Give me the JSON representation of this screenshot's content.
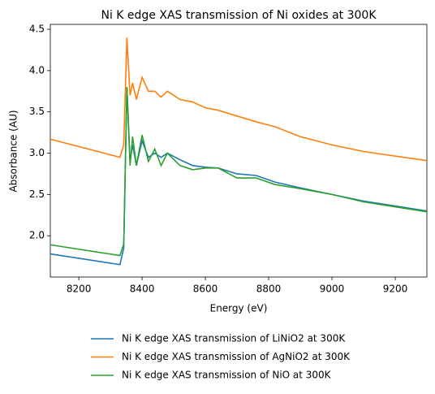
{
  "chart_data": {
    "type": "line",
    "title": "Ni K edge XAS transmission of Ni oxides at 300K",
    "xlabel": "Energy (eV)",
    "ylabel": "Absorbance (AU)",
    "xlim": [
      8110,
      9300
    ],
    "ylim": [
      1.5,
      4.56
    ],
    "xticks": [
      8200,
      8400,
      8600,
      8800,
      9000,
      9200
    ],
    "yticks": [
      {
        "value": 2.0,
        "label": "2.0"
      },
      {
        "value": 2.5,
        "label": "2.5"
      },
      {
        "value": 3.0,
        "label": "3.0"
      },
      {
        "value": 3.5,
        "label": "3.5"
      },
      {
        "value": 4.0,
        "label": "4.0"
      },
      {
        "value": 4.5,
        "label": "4.5"
      }
    ],
    "x": [
      8110,
      8330,
      8342,
      8352,
      8362,
      8370,
      8382,
      8400,
      8420,
      8440,
      8460,
      8480,
      8520,
      8560,
      8600,
      8640,
      8700,
      8760,
      8820,
      8900,
      9000,
      9100,
      9300
    ],
    "legend": "lower center",
    "series": [
      {
        "name": "Ni K edge XAS transmission of LiNiO2 at 300K",
        "color": "#1f77b4",
        "values": [
          1.78,
          1.65,
          1.85,
          3.8,
          2.9,
          3.1,
          2.85,
          3.15,
          2.95,
          3.0,
          2.95,
          3.0,
          2.92,
          2.85,
          2.83,
          2.82,
          2.75,
          2.73,
          2.65,
          2.58,
          2.5,
          2.42,
          2.3
        ]
      },
      {
        "name": "Ni K edge XAS transmission of AgNiO2 at 300K",
        "color": "#ff7f0e",
        "values": [
          3.17,
          2.95,
          3.1,
          4.4,
          3.7,
          3.85,
          3.65,
          3.92,
          3.75,
          3.75,
          3.68,
          3.75,
          3.65,
          3.62,
          3.55,
          3.52,
          3.45,
          3.38,
          3.32,
          3.2,
          3.1,
          3.02,
          2.91
        ]
      },
      {
        "name": "Ni K edge XAS transmission of NiO at 300K",
        "color": "#2ca02c",
        "values": [
          1.89,
          1.76,
          1.9,
          3.8,
          2.85,
          3.2,
          2.85,
          3.22,
          2.9,
          3.05,
          2.85,
          3.0,
          2.85,
          2.8,
          2.82,
          2.82,
          2.7,
          2.7,
          2.62,
          2.57,
          2.5,
          2.41,
          2.29
        ]
      }
    ]
  }
}
